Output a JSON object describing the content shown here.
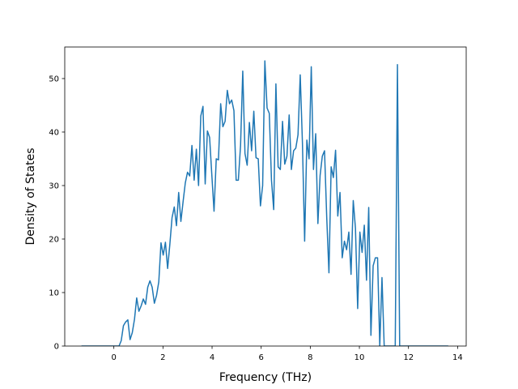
{
  "chart_data": {
    "type": "line",
    "x_label": "Frequency (THz)",
    "y_label": "Density of States",
    "xlim": [
      -2.0,
      14.35
    ],
    "ylim": [
      0,
      55.9
    ],
    "xticks": [
      0,
      2,
      4,
      6,
      8,
      10,
      12,
      14
    ],
    "yticks": [
      0,
      10,
      20,
      30,
      40,
      50
    ],
    "x": [
      -1.32,
      -1.23,
      -1.14,
      -1.05,
      -0.96,
      -0.87,
      -0.78,
      -0.69,
      -0.6,
      -0.51,
      -0.42,
      -0.33,
      -0.24,
      -0.15,
      -0.06,
      0.03,
      0.12,
      0.21,
      0.3,
      0.39,
      0.48,
      0.57,
      0.66,
      0.75,
      0.84,
      0.93,
      1.02,
      1.11,
      1.2,
      1.29,
      1.38,
      1.47,
      1.56,
      1.65,
      1.74,
      1.83,
      1.92,
      2.01,
      2.1,
      2.19,
      2.28,
      2.37,
      2.46,
      2.55,
      2.64,
      2.73,
      2.82,
      2.91,
      3.0,
      3.09,
      3.18,
      3.27,
      3.36,
      3.45,
      3.54,
      3.63,
      3.72,
      3.81,
      3.9,
      3.99,
      4.08,
      4.17,
      4.26,
      4.35,
      4.44,
      4.53,
      4.62,
      4.71,
      4.8,
      4.89,
      4.98,
      5.07,
      5.16,
      5.25,
      5.34,
      5.43,
      5.52,
      5.61,
      5.7,
      5.79,
      5.88,
      5.97,
      6.06,
      6.15,
      6.24,
      6.33,
      6.42,
      6.51,
      6.6,
      6.69,
      6.78,
      6.87,
      6.96,
      7.05,
      7.14,
      7.23,
      7.32,
      7.41,
      7.5,
      7.59,
      7.68,
      7.77,
      7.86,
      7.95,
      8.04,
      8.13,
      8.22,
      8.31,
      8.4,
      8.49,
      8.58,
      8.67,
      8.76,
      8.85,
      8.94,
      9.03,
      9.12,
      9.21,
      9.3,
      9.39,
      9.48,
      9.57,
      9.66,
      9.75,
      9.84,
      9.93,
      10.02,
      10.11,
      10.2,
      10.29,
      10.38,
      10.47,
      10.56,
      10.65,
      10.74,
      10.83,
      10.92,
      11.01,
      11.1,
      11.19,
      11.28,
      11.37,
      11.46,
      11.55,
      11.64,
      11.73,
      11.82,
      11.91,
      12.0,
      12.09,
      12.18,
      12.27,
      12.36,
      12.45,
      12.54,
      12.63,
      12.72,
      12.81,
      12.9,
      12.99,
      13.08,
      13.17,
      13.26,
      13.35,
      13.44,
      13.53,
      13.62
    ],
    "series": [
      {
        "color": "#1f77b4",
        "values": [
          0,
          0,
          0,
          0,
          0,
          0,
          0,
          0,
          0,
          0,
          0,
          0,
          0,
          0,
          0,
          0,
          0,
          0,
          1,
          3.8,
          4.5,
          4.9,
          1.2,
          2.5,
          5,
          9,
          6.5,
          7.5,
          8.8,
          7.8,
          11,
          12.2,
          11,
          8,
          9.5,
          12,
          19.3,
          17,
          19.4,
          14.5,
          19,
          24,
          26,
          22.5,
          28.7,
          23.3,
          27,
          30.5,
          32.5,
          31.8,
          37.5,
          31,
          36.8,
          30,
          43,
          44.8,
          30.3,
          40.2,
          39,
          32,
          25.2,
          35,
          34.8,
          45.3,
          41,
          42,
          47.8,
          45.3,
          46,
          44,
          31,
          31,
          37.5,
          51.4,
          36,
          33.8,
          41.8,
          36.5,
          43.9,
          35.2,
          35,
          26.2,
          30,
          53.3,
          44.5,
          43.5,
          31,
          25.5,
          49,
          33.5,
          33,
          42,
          34,
          35.5,
          43.2,
          33,
          36.5,
          37,
          39.5,
          50.7,
          38,
          19.6,
          38.5,
          35,
          52.2,
          33,
          39.7,
          22.9,
          31.9,
          35.5,
          36.5,
          24,
          13.7,
          33.5,
          31.5,
          36.6,
          24.3,
          28.7,
          16.5,
          19.6,
          18,
          21.3,
          13.4,
          27.2,
          22,
          7,
          21.3,
          17.5,
          22.6,
          12.3,
          25.9,
          2,
          15,
          16.5,
          16.5,
          0,
          12.8,
          0,
          0,
          0,
          0,
          0,
          0,
          52.6,
          0,
          0,
          0,
          0,
          0,
          0,
          0,
          0,
          0,
          0,
          0,
          0,
          0,
          0,
          0,
          0,
          0,
          0,
          0,
          0,
          0,
          0,
          0
        ]
      }
    ]
  }
}
